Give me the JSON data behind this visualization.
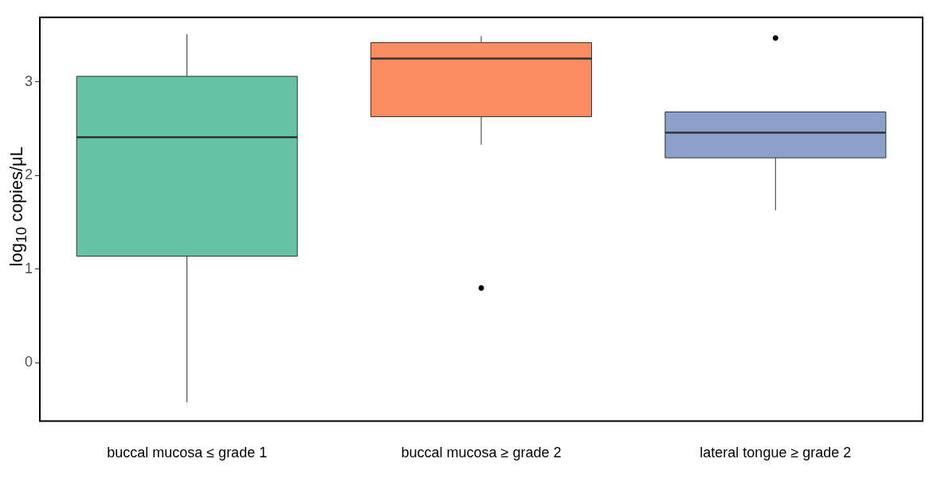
{
  "chart_data": {
    "type": "box",
    "ylabel": "log$_{10}$ copies/μL",
    "categories": [
      "buccal mucosa ≤ grade 1",
      "buccal mucosa ≥ grade 2",
      "lateral tongue ≥ grade 2"
    ],
    "colors": [
      "#66c2a5",
      "#fc8d62",
      "#8da0cb"
    ],
    "boxes": [
      {
        "low": -0.42,
        "q1": 1.14,
        "median": 2.41,
        "q3": 3.06,
        "high": 3.51
      },
      {
        "low": 2.33,
        "q1": 2.63,
        "median": 3.25,
        "q3": 3.42,
        "high": 3.49,
        "outliers": [
          0.8
        ]
      },
      {
        "low": 1.63,
        "q1": 2.19,
        "median": 2.46,
        "q3": 2.68,
        "high": 2.68,
        "outliers": [
          3.47
        ]
      }
    ],
    "ylim": [
      -0.62,
      3.69
    ],
    "yticks": [
      0,
      1,
      2,
      3
    ],
    "grid": false,
    "legend": false
  }
}
